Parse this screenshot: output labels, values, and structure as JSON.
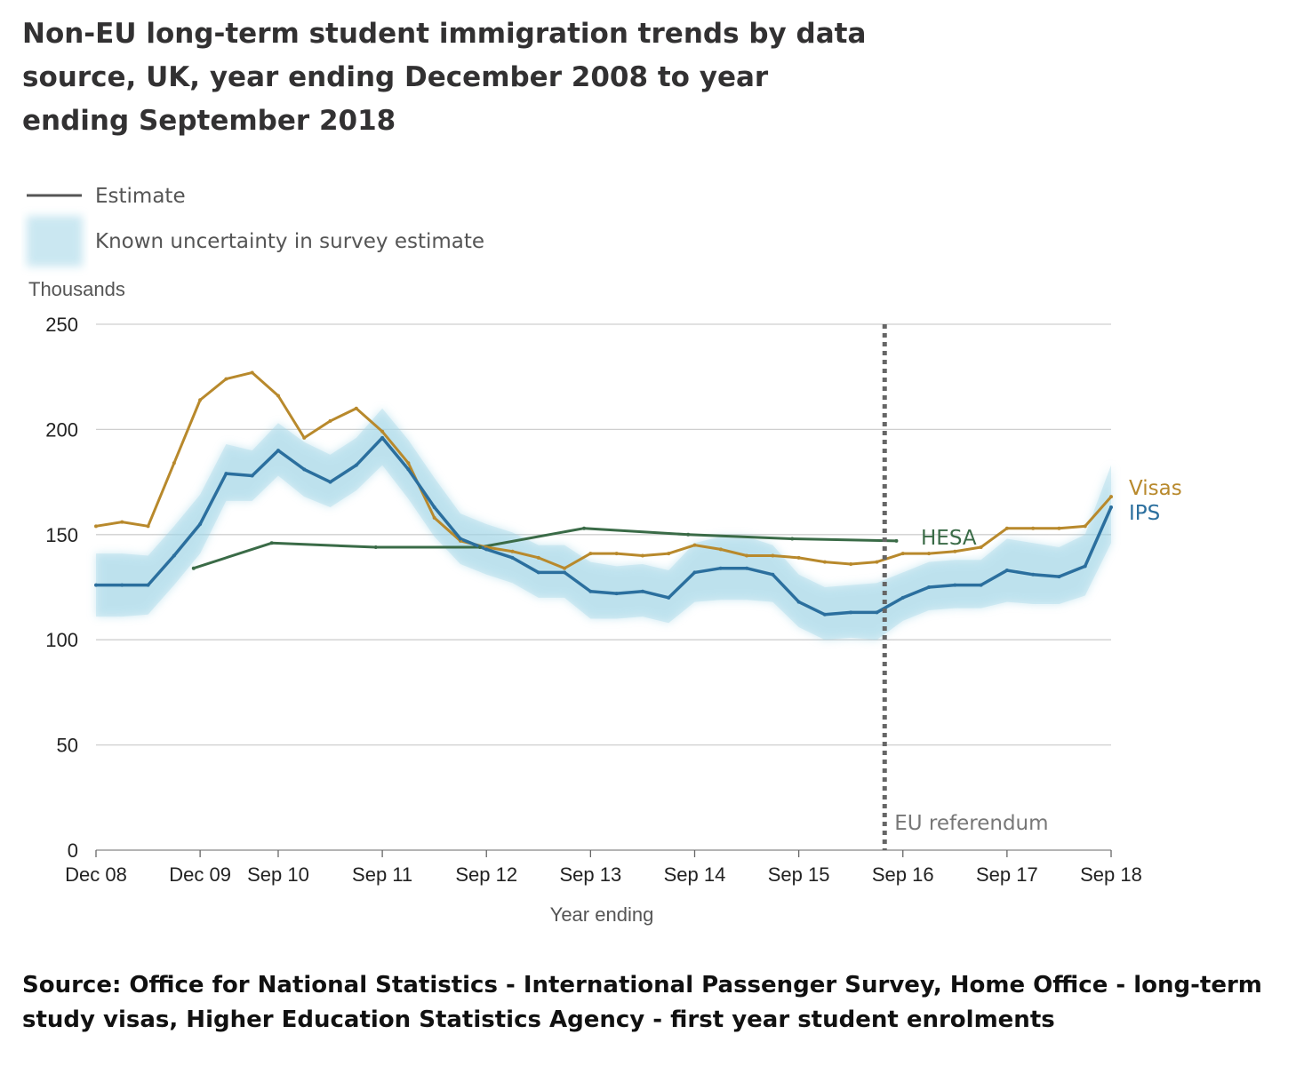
{
  "title": "Non-EU long-term student immigration trends by data source, UK, year ending December 2008 to year ending September 2018",
  "source": "Source: Office for National Statistics - International Passenger Survey, Home Office - long-term study visas, Higher Education Statistics Agency - first year student enrolments",
  "legend": {
    "estimate": "Estimate",
    "uncertainty": "Known uncertainty in survey estimate"
  },
  "colors": {
    "visas": "#b8892c",
    "ips": "#2b6f9e",
    "hesa": "#3a6b47",
    "uncertainty": "#9fd4e6",
    "grid": "#cfcfcf",
    "referendum": "#666666",
    "legend_line": "#555555"
  },
  "chart_data": {
    "type": "line",
    "ylabel": "Thousands",
    "xlabel": "Year ending",
    "ylim": [
      0,
      250
    ],
    "yticks": [
      0,
      50,
      100,
      150,
      200,
      250
    ],
    "xlim": [
      0,
      39
    ],
    "xticks": [
      {
        "label": "Dec 08",
        "q": 0
      },
      {
        "label": "Dec 09",
        "q": 4
      },
      {
        "label": "Sep 10",
        "q": 7
      },
      {
        "label": "Sep 11",
        "q": 11
      },
      {
        "label": "Sep 12",
        "q": 15
      },
      {
        "label": "Sep 13",
        "q": 19
      },
      {
        "label": "Sep 14",
        "q": 23
      },
      {
        "label": "Sep 15",
        "q": 27
      },
      {
        "label": "Sep 16",
        "q": 31
      },
      {
        "label": "Sep 17",
        "q": 35
      },
      {
        "label": "Sep 18",
        "q": 39
      }
    ],
    "grid": true,
    "annotation": {
      "label": "EU referendum",
      "q": 30.3
    },
    "series": [
      {
        "name": "Visas",
        "key": "visas",
        "x": [
          0,
          1,
          2,
          3,
          4,
          5,
          6,
          7,
          8,
          9,
          10,
          11,
          12,
          13,
          14,
          15,
          16,
          17,
          18,
          19,
          20,
          21,
          22,
          23,
          24,
          25,
          26,
          27,
          28,
          29,
          30,
          31,
          32,
          33,
          34,
          35,
          36,
          37,
          38,
          39
        ],
        "y": [
          154,
          156,
          154,
          184,
          214,
          224,
          227,
          216,
          196,
          204,
          210,
          199,
          184,
          158,
          147,
          144,
          142,
          139,
          134,
          141,
          141,
          140,
          141,
          145,
          143,
          140,
          140,
          139,
          137,
          136,
          137,
          141,
          141,
          142,
          144,
          153,
          153,
          153,
          154,
          168
        ]
      },
      {
        "name": "IPS",
        "key": "ips",
        "x": [
          0,
          1,
          2,
          3,
          4,
          5,
          6,
          7,
          8,
          9,
          10,
          11,
          12,
          13,
          14,
          15,
          16,
          17,
          18,
          19,
          20,
          21,
          22,
          23,
          24,
          25,
          26,
          27,
          28,
          29,
          30,
          31,
          32,
          33,
          34,
          35,
          36,
          37,
          38,
          39
        ],
        "y": [
          126,
          126,
          126,
          140,
          155,
          179,
          178,
          190,
          181,
          175,
          183,
          196,
          181,
          163,
          148,
          143,
          139,
          132,
          132,
          123,
          122,
          123,
          120,
          132,
          134,
          134,
          131,
          118,
          112,
          113,
          113,
          120,
          125,
          126,
          126,
          133,
          131,
          130,
          135,
          163
        ],
        "lower": [
          111,
          111,
          112,
          126,
          141,
          166,
          166,
          178,
          168,
          163,
          171,
          183,
          167,
          149,
          136,
          131,
          127,
          120,
          120,
          110,
          110,
          111,
          108,
          118,
          119,
          119,
          118,
          106,
          100,
          101,
          100,
          109,
          114,
          115,
          115,
          118,
          117,
          117,
          121,
          146
        ],
        "upper": [
          141,
          141,
          140,
          154,
          169,
          193,
          190,
          203,
          194,
          188,
          196,
          210,
          195,
          177,
          160,
          155,
          151,
          145,
          145,
          137,
          135,
          136,
          133,
          146,
          149,
          149,
          145,
          131,
          125,
          126,
          127,
          132,
          137,
          138,
          138,
          148,
          146,
          144,
          150,
          183
        ]
      },
      {
        "name": "HESA",
        "key": "hesa",
        "x": [
          3.75,
          6.75,
          10.75,
          14.75,
          18.75,
          22.75,
          26.75,
          30.75
        ],
        "y": [
          134,
          146,
          144,
          144,
          153,
          150,
          148,
          147
        ]
      }
    ]
  }
}
